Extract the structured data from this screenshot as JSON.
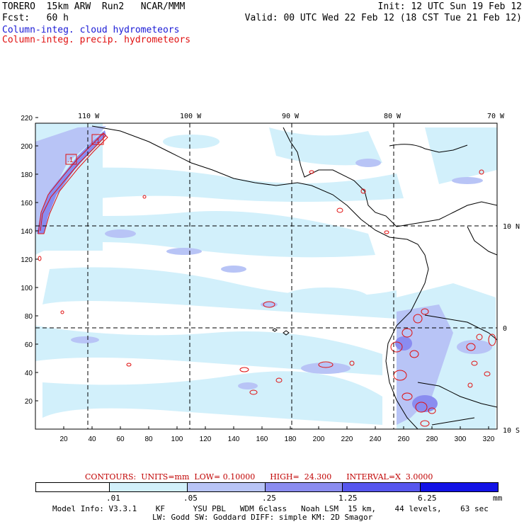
{
  "header": {
    "model": "TORERO",
    "res": "15km ARW",
    "run": "Run2",
    "org": "NCAR/MMM",
    "init": "Init: 12 UTC Sun 19 Feb 12",
    "fcst_label": "Fcst:",
    "fcst_value": "60 h",
    "valid": "Valid: 00 UTC Wed 22 Feb 12 (18 CST Tue 21 Feb 12)",
    "field1": "Column-integ. cloud hydrometeors",
    "field2": "Column-integ. precip. hydrometeors"
  },
  "map": {
    "lon_labels": [
      "110 W",
      "100 W",
      "90 W",
      "80 W",
      "70 W"
    ],
    "lat_labels": [
      "10 N",
      "0",
      "10 S"
    ],
    "x_ticks": [
      "20",
      "40",
      "60",
      "80",
      "100",
      "120",
      "140",
      "160",
      "180",
      "200",
      "220",
      "240",
      "260",
      "280",
      "300",
      "320"
    ],
    "y_ticks": [
      "20",
      "40",
      "60",
      "80",
      "100",
      "120",
      "140",
      "160",
      "180",
      "200",
      "220"
    ],
    "contour_labels": [
      ".1",
      ".1"
    ]
  },
  "contours_info": "CONTOURS:  UNITS=mm  LOW= 0.10000      HIGH=  24.300      INTERVAL=X  3.0000",
  "colorbar": {
    "colors": [
      "#ffffff",
      "#d2f0fb",
      "#b8c4f6",
      "#8a8cf0",
      "#5656ee",
      "#1212e6"
    ],
    "labels": [
      ".01",
      ".05",
      ".25",
      "1.25",
      "6.25"
    ],
    "unit": "mm"
  },
  "model_info": {
    "line1": "Model Info: V3.3.1    KF      YSU PBL   WDM 6class   Noah LSM  15 km,    44 levels,    63 sec",
    "line2": "LW: Godd SW: Goddard DIFF: simple KM: 2D Smagor"
  },
  "colors": {
    "cloud": "#1a1ad6",
    "precip": "#e01010",
    "light_cloud": "#d2f0fb",
    "mid_cloud": "#b8c4f6",
    "dense_cloud": "#8a8cf0"
  }
}
